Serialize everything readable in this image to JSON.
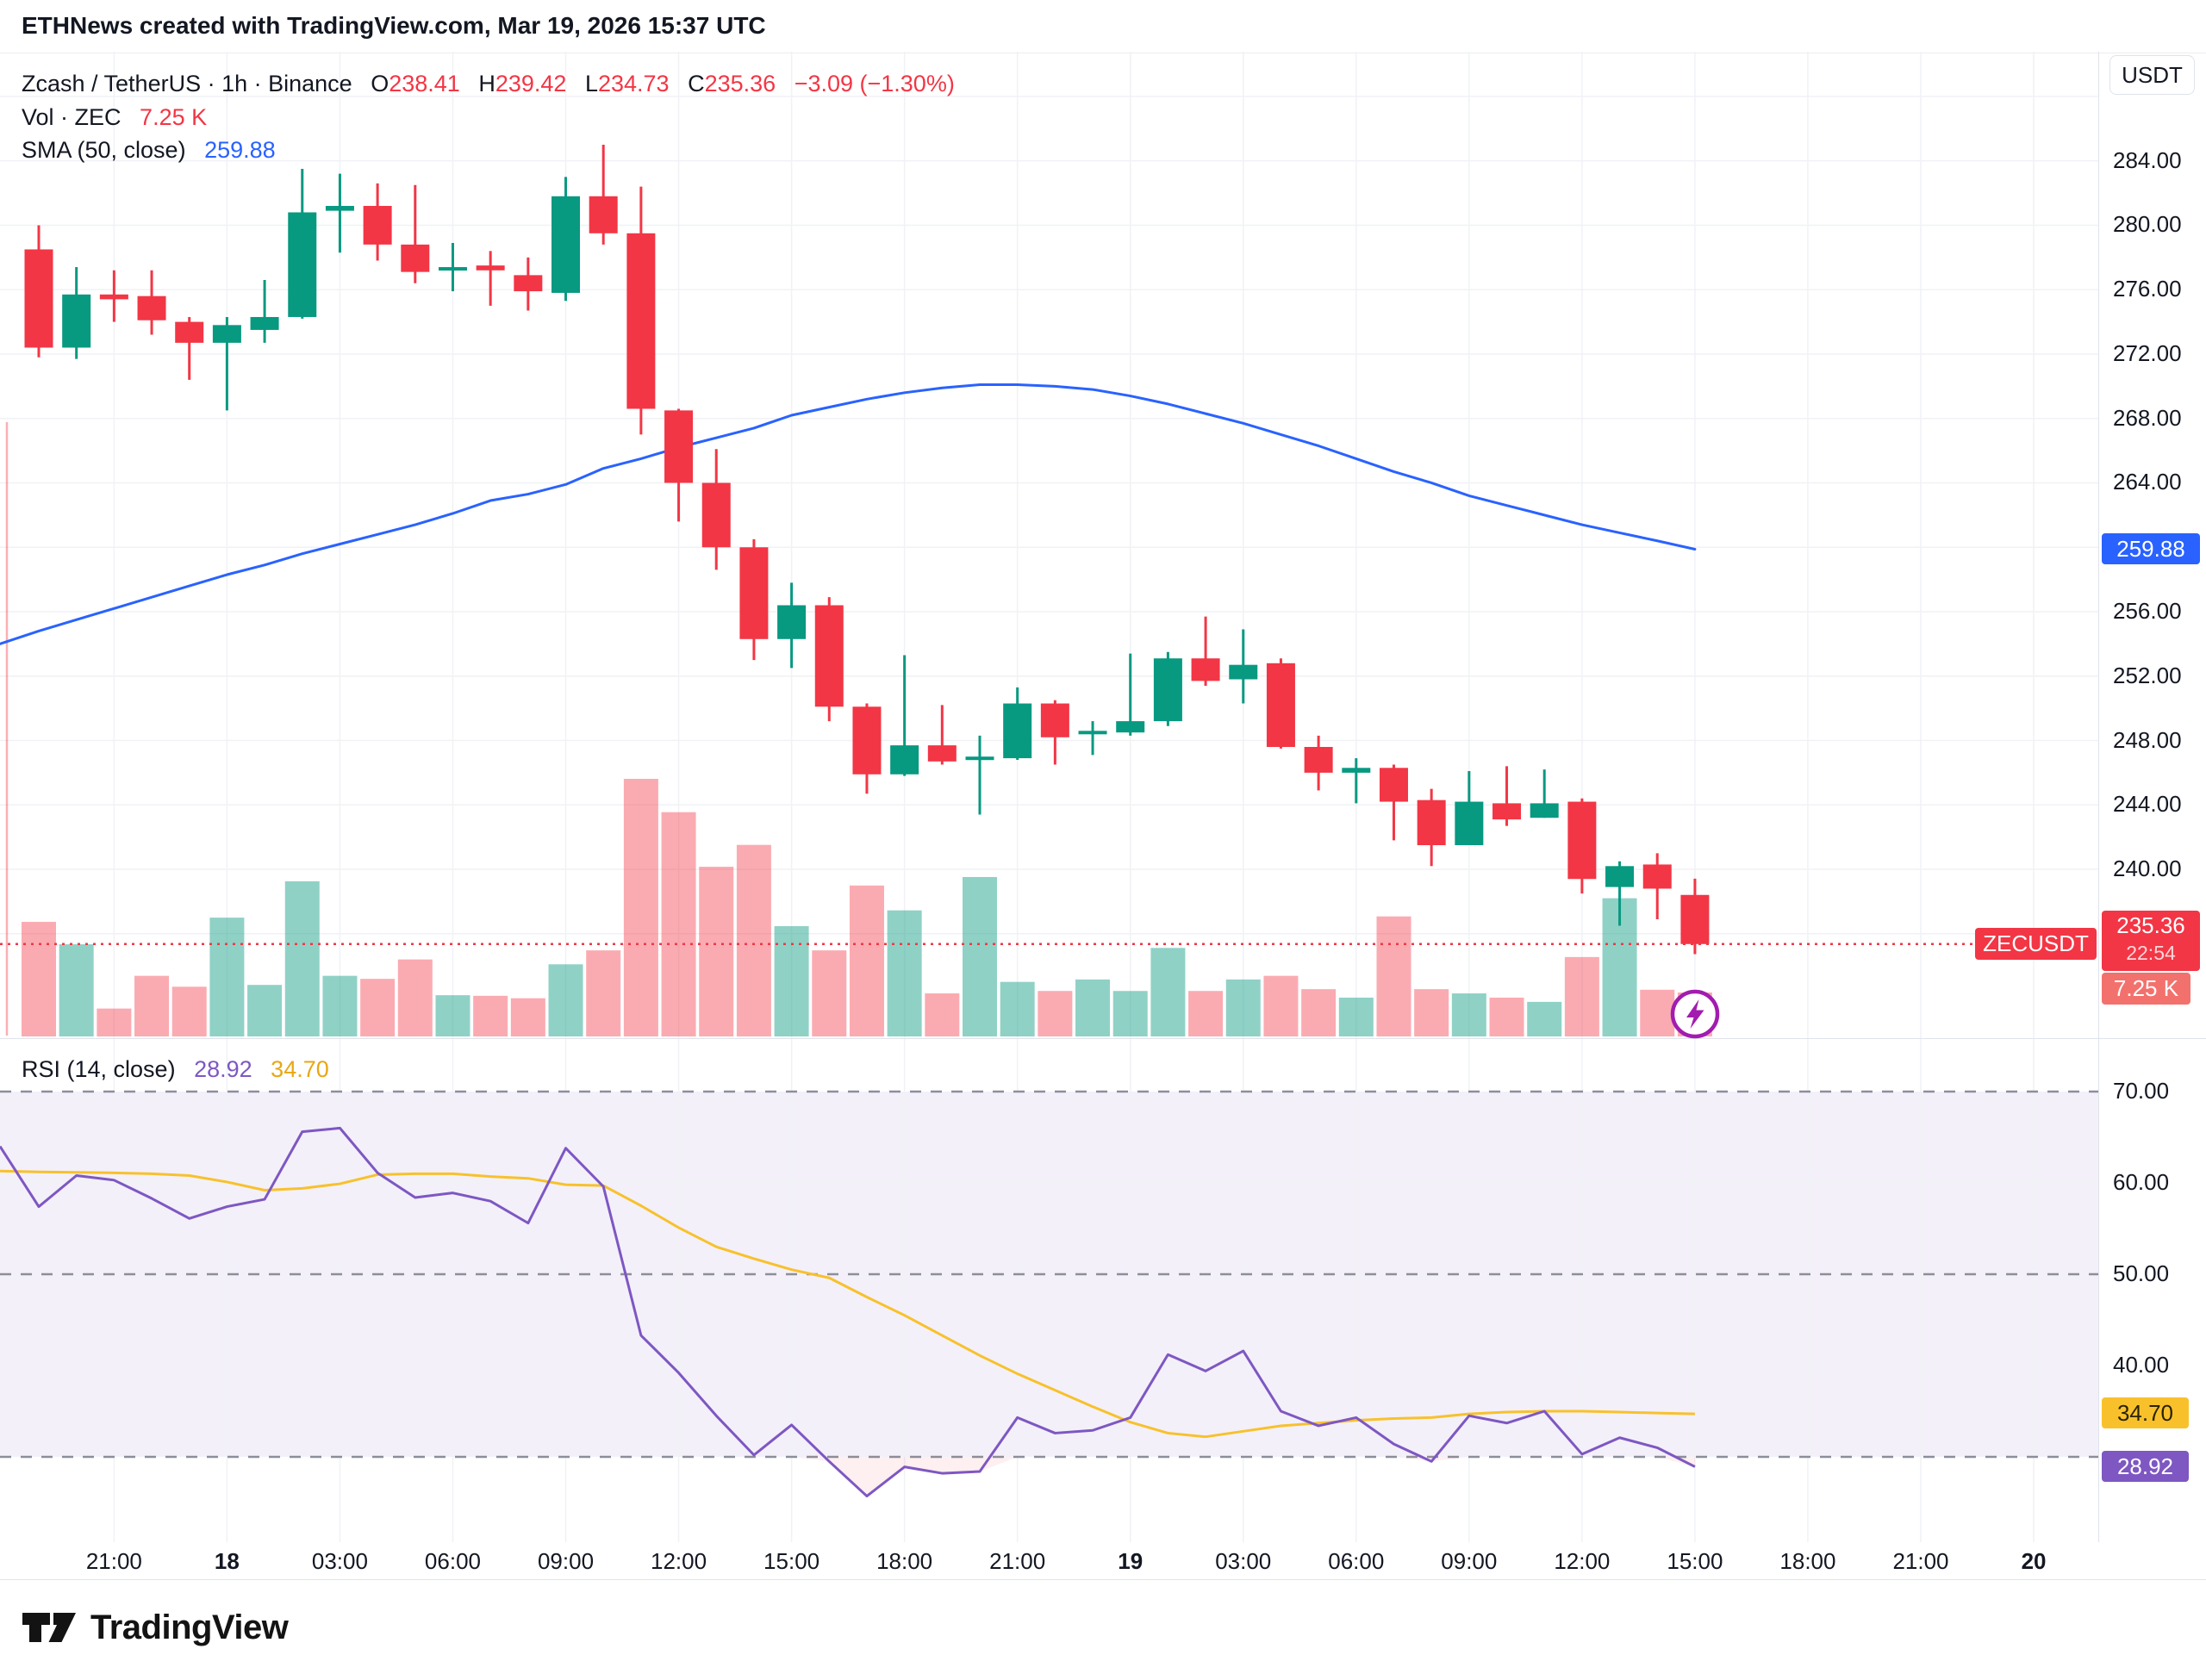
{
  "header": {
    "title": "ETHNews created with TradingView.com, Mar 19, 2026 15:37 UTC"
  },
  "legend": {
    "symbol": "Zcash / TetherUS · 1h · Binance",
    "o_label": "O",
    "o": "238.41",
    "h_label": "H",
    "h": "239.42",
    "l_label": "L",
    "l": "234.73",
    "c_label": "C",
    "c": "235.36",
    "change": "−3.09 (−1.30%)",
    "vol_label": "Vol · ZEC",
    "vol_value": "7.25 K",
    "sma_label": "SMA (50, close)",
    "sma_value": "259.88"
  },
  "rsi_legend": {
    "label": "RSI (14, close)",
    "value": "28.92",
    "ma_value": "34.70"
  },
  "badges": {
    "sma": "259.88",
    "symbol": "ZECUSDT",
    "last_price": "235.36",
    "countdown": "22:54",
    "volume": "7.25 K",
    "rsi_ma": "34.70",
    "rsi": "28.92"
  },
  "price_axis": {
    "currency_label": "USDT"
  },
  "footer": {
    "brand": "TradingView"
  },
  "chart_data": {
    "type": "candlestick",
    "title": "Zcash / TetherUS · 1h · Binance",
    "symbol": "ZECUSDT",
    "exchange": "Binance",
    "interval": "1h",
    "colors": {
      "up": "#089981",
      "down": "#f23645",
      "vol_up": "rgba(8,153,129,0.45)",
      "vol_down": "rgba(242,54,69,0.42)",
      "sma": "#2962ff",
      "rsi": "#7e57c2",
      "rsi_ma": "#f8c12c",
      "grid": "#f0f2f6",
      "dashed": "#8c8f99",
      "rsi_band": "rgba(126,87,194,0.09)",
      "oversold_fill": "rgba(242,54,69,0.08)",
      "last_price_line": "#f23645"
    },
    "price_axis": {
      "currency": "USDT",
      "ticks": [
        284,
        280,
        276,
        272,
        268,
        264,
        256,
        252,
        248,
        244,
        240
      ],
      "gridlines": [
        288,
        284,
        280,
        276,
        272,
        268,
        264,
        260,
        256,
        252,
        248,
        244,
        240,
        236
      ],
      "last_price": 235.36,
      "countdown": "22:54",
      "current_volume_k": 7.25
    },
    "time_axis": [
      {
        "label": "21:00",
        "bold": false
      },
      {
        "label": "18",
        "bold": true
      },
      {
        "label": "03:00",
        "bold": false
      },
      {
        "label": "06:00",
        "bold": false
      },
      {
        "label": "09:00",
        "bold": false
      },
      {
        "label": "12:00",
        "bold": false
      },
      {
        "label": "15:00",
        "bold": false
      },
      {
        "label": "18:00",
        "bold": false
      },
      {
        "label": "21:00",
        "bold": false
      },
      {
        "label": "19",
        "bold": true
      },
      {
        "label": "03:00",
        "bold": false
      },
      {
        "label": "06:00",
        "bold": false
      },
      {
        "label": "09:00",
        "bold": false
      },
      {
        "label": "12:00",
        "bold": false
      },
      {
        "label": "15:00",
        "bold": false
      },
      {
        "label": "18:00",
        "bold": false
      },
      {
        "label": "21:00",
        "bold": false
      },
      {
        "label": "20",
        "bold": true
      }
    ],
    "candles": [
      {
        "t": "17 19:00",
        "o": 278.5,
        "h": 280.0,
        "l": 271.8,
        "c": 272.4,
        "v": 18.9
      },
      {
        "t": "17 20:00",
        "o": 272.4,
        "h": 277.4,
        "l": 271.7,
        "c": 275.7,
        "v": 15.2
      },
      {
        "t": "17 21:00",
        "o": 275.7,
        "h": 277.2,
        "l": 274.0,
        "c": 275.4,
        "v": 4.6
      },
      {
        "t": "17 22:00",
        "o": 275.6,
        "h": 277.2,
        "l": 273.2,
        "c": 274.1,
        "v": 10.0
      },
      {
        "t": "17 23:00",
        "o": 274.0,
        "h": 274.3,
        "l": 270.4,
        "c": 272.7,
        "v": 8.2
      },
      {
        "t": "18 00:00",
        "o": 272.7,
        "h": 274.3,
        "l": 268.5,
        "c": 273.8,
        "v": 19.6
      },
      {
        "t": "18 01:00",
        "o": 273.5,
        "h": 276.6,
        "l": 272.7,
        "c": 274.3,
        "v": 8.5
      },
      {
        "t": "18 02:00",
        "o": 274.3,
        "h": 283.5,
        "l": 274.2,
        "c": 280.8,
        "v": 25.6
      },
      {
        "t": "18 03:00",
        "o": 280.9,
        "h": 283.2,
        "l": 278.3,
        "c": 281.2,
        "v": 10.0
      },
      {
        "t": "18 04:00",
        "o": 281.2,
        "h": 282.6,
        "l": 277.8,
        "c": 278.8,
        "v": 9.5
      },
      {
        "t": "18 05:00",
        "o": 278.8,
        "h": 282.5,
        "l": 276.4,
        "c": 277.1,
        "v": 12.7
      },
      {
        "t": "18 06:00",
        "o": 277.2,
        "h": 278.9,
        "l": 275.9,
        "c": 277.4,
        "v": 6.8
      },
      {
        "t": "18 07:00",
        "o": 277.5,
        "h": 278.4,
        "l": 275.0,
        "c": 277.2,
        "v": 6.7
      },
      {
        "t": "18 08:00",
        "o": 276.9,
        "h": 278.0,
        "l": 274.7,
        "c": 275.9,
        "v": 6.3
      },
      {
        "t": "18 09:00",
        "o": 275.8,
        "h": 283.0,
        "l": 275.3,
        "c": 281.8,
        "v": 11.9
      },
      {
        "t": "18 10:00",
        "o": 281.8,
        "h": 285.0,
        "l": 278.8,
        "c": 279.5,
        "v": 14.2
      },
      {
        "t": "18 11:00",
        "o": 279.5,
        "h": 282.4,
        "l": 267.0,
        "c": 268.6,
        "v": 42.5
      },
      {
        "t": "18 12:00",
        "o": 268.5,
        "h": 268.6,
        "l": 261.6,
        "c": 264.0,
        "v": 37.0
      },
      {
        "t": "18 13:00",
        "o": 264.0,
        "h": 266.1,
        "l": 258.6,
        "c": 260.0,
        "v": 28.0
      },
      {
        "t": "18 14:00",
        "o": 260.0,
        "h": 260.5,
        "l": 253.0,
        "c": 254.3,
        "v": 31.6
      },
      {
        "t": "18 15:00",
        "o": 254.3,
        "h": 257.8,
        "l": 252.5,
        "c": 256.4,
        "v": 18.2
      },
      {
        "t": "18 16:00",
        "o": 256.4,
        "h": 256.9,
        "l": 249.2,
        "c": 250.1,
        "v": 14.2
      },
      {
        "t": "18 17:00",
        "o": 250.1,
        "h": 250.3,
        "l": 244.7,
        "c": 245.9,
        "v": 24.9
      },
      {
        "t": "18 18:00",
        "o": 245.9,
        "h": 253.3,
        "l": 245.8,
        "c": 247.7,
        "v": 20.8
      },
      {
        "t": "18 19:00",
        "o": 247.7,
        "h": 250.2,
        "l": 246.5,
        "c": 246.7,
        "v": 7.1
      },
      {
        "t": "18 20:00",
        "o": 246.8,
        "h": 248.3,
        "l": 243.4,
        "c": 247.0,
        "v": 26.3
      },
      {
        "t": "18 21:00",
        "o": 246.9,
        "h": 251.3,
        "l": 246.8,
        "c": 250.3,
        "v": 9.0
      },
      {
        "t": "18 22:00",
        "o": 250.3,
        "h": 250.5,
        "l": 246.5,
        "c": 248.2,
        "v": 7.5
      },
      {
        "t": "18 23:00",
        "o": 248.4,
        "h": 249.2,
        "l": 247.1,
        "c": 248.6,
        "v": 9.4
      },
      {
        "t": "19 00:00",
        "o": 248.5,
        "h": 253.4,
        "l": 248.3,
        "c": 249.2,
        "v": 7.5
      },
      {
        "t": "19 01:00",
        "o": 249.2,
        "h": 253.5,
        "l": 248.9,
        "c": 253.1,
        "v": 14.6
      },
      {
        "t": "19 02:00",
        "o": 253.1,
        "h": 255.7,
        "l": 251.4,
        "c": 251.7,
        "v": 7.5
      },
      {
        "t": "19 03:00",
        "o": 251.8,
        "h": 254.9,
        "l": 250.3,
        "c": 252.7,
        "v": 9.4
      },
      {
        "t": "19 04:00",
        "o": 252.8,
        "h": 253.1,
        "l": 247.5,
        "c": 247.6,
        "v": 10.0
      },
      {
        "t": "19 05:00",
        "o": 247.6,
        "h": 248.3,
        "l": 244.9,
        "c": 246.0,
        "v": 7.8
      },
      {
        "t": "19 06:00",
        "o": 246.0,
        "h": 246.9,
        "l": 244.1,
        "c": 246.3,
        "v": 6.4
      },
      {
        "t": "19 07:00",
        "o": 246.3,
        "h": 246.5,
        "l": 241.8,
        "c": 244.2,
        "v": 19.8
      },
      {
        "t": "19 08:00",
        "o": 244.3,
        "h": 245.0,
        "l": 240.2,
        "c": 241.5,
        "v": 7.8
      },
      {
        "t": "19 09:00",
        "o": 241.5,
        "h": 246.1,
        "l": 241.5,
        "c": 244.2,
        "v": 7.1
      },
      {
        "t": "19 10:00",
        "o": 244.1,
        "h": 246.4,
        "l": 242.7,
        "c": 243.1,
        "v": 6.4
      },
      {
        "t": "19 11:00",
        "o": 243.2,
        "h": 246.2,
        "l": 243.2,
        "c": 244.1,
        "v": 5.7
      },
      {
        "t": "19 12:00",
        "o": 244.2,
        "h": 244.4,
        "l": 238.5,
        "c": 239.4,
        "v": 13.1
      },
      {
        "t": "19 13:00",
        "o": 238.9,
        "h": 240.5,
        "l": 236.5,
        "c": 240.2,
        "v": 22.8
      },
      {
        "t": "19 14:00",
        "o": 240.3,
        "h": 241.0,
        "l": 236.9,
        "c": 238.8,
        "v": 7.7
      },
      {
        "t": "19 15:00",
        "o": 238.41,
        "h": 239.42,
        "l": 234.73,
        "c": 235.36,
        "v": 7.25
      }
    ],
    "sma50": {
      "label": "SMA (50, close)",
      "current": 259.88,
      "lead_in": 254.0,
      "values": [
        254.8,
        255.5,
        256.2,
        256.9,
        257.6,
        258.3,
        258.9,
        259.6,
        260.2,
        260.8,
        261.4,
        262.1,
        262.9,
        263.3,
        263.9,
        264.9,
        265.5,
        266.2,
        266.8,
        267.4,
        268.2,
        268.7,
        269.2,
        269.6,
        269.9,
        270.1,
        270.1,
        270.0,
        269.8,
        269.4,
        268.9,
        268.3,
        267.7,
        267.0,
        266.3,
        265.5,
        264.7,
        264.0,
        263.2,
        262.6,
        262.0,
        261.4,
        260.9,
        260.4,
        259.88
      ]
    },
    "rsi14": {
      "label": "RSI (14, close)",
      "current": 28.92,
      "ma_current": 34.7,
      "overbought": 70,
      "middle": 50,
      "oversold": 30,
      "ticks": [
        70,
        60,
        50,
        40
      ],
      "lead_in": 64.0,
      "values": [
        57.4,
        60.8,
        60.3,
        58.3,
        56.1,
        57.4,
        58.2,
        65.6,
        66.0,
        61.1,
        58.4,
        58.9,
        58.0,
        55.6,
        63.8,
        59.6,
        43.3,
        39.2,
        34.5,
        30.2,
        33.5,
        29.5,
        25.7,
        28.9,
        28.2,
        28.4,
        34.3,
        32.6,
        32.9,
        34.3,
        41.2,
        39.4,
        41.6,
        35.0,
        33.4,
        34.3,
        31.4,
        29.5,
        34.5,
        33.7,
        35.0,
        30.3,
        32.1,
        31.0,
        28.92
      ],
      "ma_lead_in": 61.3,
      "ma_values": [
        61.2,
        61.15,
        61.1,
        61.0,
        60.8,
        60.1,
        59.2,
        59.4,
        59.9,
        60.9,
        61.0,
        61.0,
        60.7,
        60.5,
        59.8,
        59.7,
        57.5,
        55.1,
        53.0,
        51.7,
        50.5,
        49.6,
        47.5,
        45.5,
        43.3,
        41.1,
        39.1,
        37.3,
        35.5,
        33.8,
        32.6,
        32.2,
        32.8,
        33.4,
        33.7,
        34.0,
        34.2,
        34.3,
        34.7,
        34.9,
        35.0,
        35.0,
        34.9,
        34.8,
        34.7
      ]
    }
  }
}
